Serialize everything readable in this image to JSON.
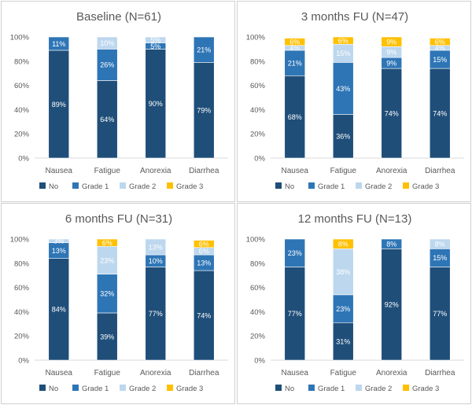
{
  "colors": {
    "No": "#1f4e79",
    "Grade 1": "#2e75b6",
    "Grade 2": "#bdd7ee",
    "Grade 3": "#ffc000",
    "axis": "#d9d9d9",
    "grid": "#d9d9d9",
    "text": "#595959"
  },
  "chart_data": [
    {
      "type": "bar",
      "stacked": true,
      "title": "Baseline (N=61)",
      "categories": [
        "Nausea",
        "Fatigue",
        "Anorexia",
        "Diarrhea"
      ],
      "ylim": [
        0,
        100
      ],
      "yticks": [
        "0%",
        "20%",
        "40%",
        "60%",
        "80%",
        "100%"
      ],
      "legend_position": "bottom",
      "grid": false,
      "series": [
        {
          "name": "No",
          "values": [
            89,
            64,
            90,
            79
          ],
          "labels": [
            "89%",
            "64%",
            "90%",
            "79%"
          ]
        },
        {
          "name": "Grade 1",
          "values": [
            11,
            26,
            5,
            21
          ],
          "labels": [
            "11%",
            "26%",
            "5%",
            "21%"
          ]
        },
        {
          "name": "Grade 2",
          "values": [
            0,
            10,
            5,
            0
          ],
          "labels": [
            "",
            "10%",
            "5%",
            ""
          ]
        },
        {
          "name": "Grade 3",
          "values": [
            0,
            0,
            0,
            0
          ],
          "labels": [
            "",
            "",
            "",
            ""
          ]
        }
      ]
    },
    {
      "type": "bar",
      "stacked": true,
      "title": "3 months FU (N=47)",
      "categories": [
        "Nausea",
        "Fatigue",
        "Anorexia",
        "Diarrhea"
      ],
      "ylim": [
        0,
        100
      ],
      "yticks": [
        "0%",
        "20%",
        "40%",
        "60%",
        "80%",
        "100%"
      ],
      "legend_position": "bottom",
      "grid": false,
      "series": [
        {
          "name": "No",
          "values": [
            68,
            36,
            74,
            74
          ],
          "labels": [
            "68%",
            "36%",
            "74%",
            "74%"
          ]
        },
        {
          "name": "Grade 1",
          "values": [
            21,
            43,
            9,
            15
          ],
          "labels": [
            "21%",
            "43%",
            "9%",
            "15%"
          ]
        },
        {
          "name": "Grade 2",
          "values": [
            4,
            15,
            9,
            4
          ],
          "labels": [
            "4%",
            "15%",
            "9%",
            "4%"
          ]
        },
        {
          "name": "Grade 3",
          "values": [
            6,
            6,
            9,
            6
          ],
          "labels": [
            "6%",
            "6%",
            "9%",
            "6%"
          ]
        }
      ]
    },
    {
      "type": "bar",
      "stacked": true,
      "title": "6 months FU (N=31)",
      "categories": [
        "Nausea",
        "Fatigue",
        "Anorexia",
        "Diarrhea"
      ],
      "ylim": [
        0,
        100
      ],
      "yticks": [
        "0%",
        "20%",
        "40%",
        "60%",
        "80%",
        "100%"
      ],
      "legend_position": "bottom",
      "grid": false,
      "series": [
        {
          "name": "No",
          "values": [
            84,
            39,
            77,
            74
          ],
          "labels": [
            "84%",
            "39%",
            "77%",
            "74%"
          ]
        },
        {
          "name": "Grade 1",
          "values": [
            13,
            32,
            10,
            13
          ],
          "labels": [
            "13%",
            "32%",
            "10%",
            "13%"
          ]
        },
        {
          "name": "Grade 2",
          "values": [
            3,
            23,
            13,
            6
          ],
          "labels": [
            "3%",
            "23%",
            "13%",
            "6%"
          ]
        },
        {
          "name": "Grade 3",
          "values": [
            0,
            6,
            0,
            6
          ],
          "labels": [
            "",
            "6%",
            "",
            "6%"
          ]
        }
      ]
    },
    {
      "type": "bar",
      "stacked": true,
      "title": "12 months FU (N=13)",
      "categories": [
        "Nausea",
        "Fatigue",
        "Anorexia",
        "Diarrhea"
      ],
      "ylim": [
        0,
        100
      ],
      "yticks": [
        "0%",
        "20%",
        "40%",
        "60%",
        "80%",
        "100%"
      ],
      "legend_position": "bottom",
      "grid": false,
      "series": [
        {
          "name": "No",
          "values": [
            77,
            31,
            92,
            77
          ],
          "labels": [
            "77%",
            "31%",
            "92%",
            "77%"
          ]
        },
        {
          "name": "Grade 1",
          "values": [
            23,
            23,
            8,
            15
          ],
          "labels": [
            "23%",
            "23%",
            "8%",
            "15%"
          ]
        },
        {
          "name": "Grade 2",
          "values": [
            0,
            38,
            0,
            8
          ],
          "labels": [
            "",
            "38%",
            "",
            "8%"
          ]
        },
        {
          "name": "Grade 3",
          "values": [
            0,
            8,
            0,
            0
          ],
          "labels": [
            "",
            "8%",
            "",
            ""
          ]
        }
      ]
    }
  ]
}
